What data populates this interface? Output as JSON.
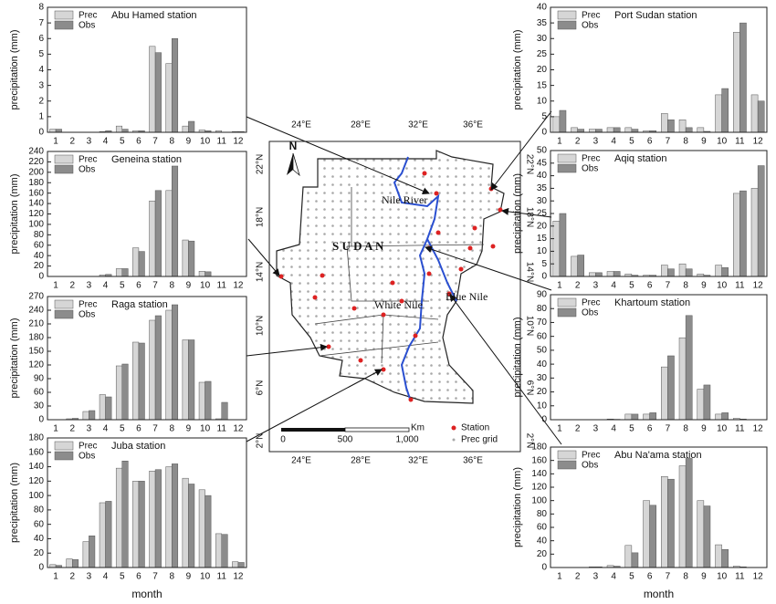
{
  "chart_data": [
    {
      "type": "bar",
      "title": "Abu Hamed station",
      "ylabel": "precipitation (mm)",
      "legend": "upper left",
      "categories": [
        "1",
        "2",
        "3",
        "4",
        "5",
        "6",
        "7",
        "8",
        "9",
        "10",
        "11",
        "12"
      ],
      "series": [
        {
          "name": "Prec",
          "color": "#d6d6d6",
          "values": [
            0.2,
            0,
            0,
            0.05,
            0.4,
            0.1,
            5.5,
            4.4,
            0.4,
            0.15,
            0.1,
            0.05
          ]
        },
        {
          "name": "Obs",
          "color": "#8c8c8c",
          "values": [
            0.2,
            0,
            0,
            0.1,
            0.2,
            0.1,
            5.1,
            6.0,
            0.7,
            0.1,
            0,
            0.05
          ]
        }
      ],
      "ylim": [
        0,
        8
      ],
      "yticks": [
        0,
        1,
        2,
        3,
        4,
        5,
        6,
        7,
        8
      ]
    },
    {
      "type": "bar",
      "title": "Geneina station",
      "ylabel": "precipitation (mm)",
      "legend": "upper left",
      "categories": [
        "1",
        "2",
        "3",
        "4",
        "5",
        "6",
        "7",
        "8",
        "9",
        "10",
        "11",
        "12"
      ],
      "series": [
        {
          "name": "Prec",
          "color": "#d6d6d6",
          "values": [
            0,
            0,
            0,
            3,
            15,
            55,
            145,
            165,
            70,
            10,
            0,
            0
          ]
        },
        {
          "name": "Obs",
          "color": "#8c8c8c",
          "values": [
            0,
            0,
            0,
            4,
            15,
            48,
            165,
            212,
            68,
            9,
            0,
            0
          ]
        }
      ],
      "ylim": [
        0,
        240
      ],
      "yticks": [
        0,
        20,
        40,
        60,
        80,
        100,
        120,
        140,
        160,
        180,
        200,
        220,
        240
      ]
    },
    {
      "type": "bar",
      "title": "Raga station",
      "ylabel": "precipitation (mm)",
      "legend": "upper left",
      "categories": [
        "1",
        "2",
        "3",
        "4",
        "5",
        "6",
        "7",
        "8",
        "9",
        "10",
        "11",
        "12"
      ],
      "series": [
        {
          "name": "Prec",
          "color": "#d6d6d6",
          "values": [
            0,
            2,
            18,
            55,
            118,
            170,
            218,
            240,
            175,
            82,
            2,
            0
          ]
        },
        {
          "name": "Obs",
          "color": "#8c8c8c",
          "values": [
            0,
            3,
            20,
            50,
            122,
            168,
            228,
            252,
            175,
            84,
            38,
            0
          ]
        }
      ],
      "ylim": [
        0,
        270
      ],
      "yticks": [
        0,
        30,
        60,
        90,
        120,
        150,
        180,
        210,
        240,
        270
      ]
    },
    {
      "type": "bar",
      "title": "Juba station",
      "ylabel": "precipitation (mm)",
      "xlabel": "month",
      "legend": "upper left",
      "categories": [
        "1",
        "2",
        "3",
        "4",
        "5",
        "6",
        "7",
        "8",
        "9",
        "10",
        "11",
        "12"
      ],
      "series": [
        {
          "name": "Prec",
          "color": "#d6d6d6",
          "values": [
            4,
            12,
            36,
            90,
            138,
            120,
            134,
            140,
            124,
            108,
            47,
            8
          ]
        },
        {
          "name": "Obs",
          "color": "#8c8c8c",
          "values": [
            3,
            11,
            44,
            92,
            148,
            120,
            136,
            144,
            116,
            100,
            46,
            7
          ]
        }
      ],
      "ylim": [
        0,
        180
      ],
      "yticks": [
        0,
        20,
        40,
        60,
        80,
        100,
        120,
        140,
        160,
        180
      ]
    },
    {
      "type": "bar",
      "title": "Port Sudan station",
      "ylabel": "precipitation (mm)",
      "legend": "upper left",
      "categories": [
        "1",
        "2",
        "3",
        "4",
        "5",
        "6",
        "7",
        "8",
        "9",
        "10",
        "11",
        "12"
      ],
      "series": [
        {
          "name": "Prec",
          "color": "#d6d6d6",
          "values": [
            5,
            1.5,
            1,
            1.5,
            1.5,
            0.5,
            6,
            4,
            1.5,
            12,
            32,
            12
          ]
        },
        {
          "name": "Obs",
          "color": "#8c8c8c",
          "values": [
            7,
            1,
            1,
            1.5,
            1,
            0.5,
            4,
            1.5,
            0.3,
            14,
            35,
            10
          ]
        }
      ],
      "ylim": [
        0,
        40
      ],
      "yticks": [
        0,
        5,
        10,
        15,
        20,
        25,
        30,
        35,
        40
      ]
    },
    {
      "type": "bar",
      "title": "Aqiq station",
      "ylabel": "precipitation (mm)",
      "legend": "upper left",
      "categories": [
        "1",
        "2",
        "3",
        "4",
        "5",
        "6",
        "7",
        "8",
        "9",
        "10",
        "11",
        "12"
      ],
      "series": [
        {
          "name": "Prec",
          "color": "#d6d6d6",
          "values": [
            22,
            8,
            1.5,
            2,
            1,
            0.5,
            4.5,
            5,
            1,
            4.5,
            33,
            35
          ]
        },
        {
          "name": "Obs",
          "color": "#8c8c8c",
          "values": [
            25,
            8.5,
            1.5,
            2,
            0.5,
            0.5,
            3,
            3,
            0.5,
            3.5,
            34,
            44
          ]
        }
      ],
      "ylim": [
        0,
        50
      ],
      "yticks": [
        0,
        5,
        10,
        15,
        20,
        25,
        30,
        35,
        40,
        45,
        50
      ]
    },
    {
      "type": "bar",
      "title": "Khartoum station",
      "ylabel": "precipitation (mm)",
      "legend": "upper left",
      "categories": [
        "1",
        "2",
        "3",
        "4",
        "5",
        "6",
        "7",
        "8",
        "9",
        "10",
        "11",
        "12"
      ],
      "series": [
        {
          "name": "Prec",
          "color": "#d6d6d6",
          "values": [
            0,
            0,
            0,
            0.5,
            4,
            4,
            38,
            59,
            22,
            4,
            1,
            0
          ]
        },
        {
          "name": "Obs",
          "color": "#8c8c8c",
          "values": [
            0,
            0,
            0,
            0.3,
            4,
            5,
            46,
            75,
            25,
            5,
            0.5,
            0
          ]
        }
      ],
      "ylim": [
        0,
        90
      ],
      "yticks": [
        0,
        10,
        20,
        30,
        40,
        50,
        60,
        70,
        80,
        90
      ]
    },
    {
      "type": "bar",
      "title": "Abu Na'ama station",
      "ylabel": "precipitation (mm)",
      "xlabel": "month",
      "legend": "upper left",
      "categories": [
        "1",
        "2",
        "3",
        "4",
        "5",
        "6",
        "7",
        "8",
        "9",
        "10",
        "11",
        "12"
      ],
      "series": [
        {
          "name": "Prec",
          "color": "#d6d6d6",
          "values": [
            0,
            0,
            1,
            3,
            33,
            100,
            136,
            152,
            100,
            34,
            2,
            0
          ]
        },
        {
          "name": "Obs",
          "color": "#8c8c8c",
          "values": [
            0,
            0,
            1,
            2,
            22,
            93,
            132,
            163,
            92,
            27,
            1,
            0
          ]
        }
      ],
      "ylim": [
        0,
        180
      ],
      "yticks": [
        0,
        20,
        40,
        60,
        80,
        100,
        120,
        140,
        160,
        180
      ]
    }
  ],
  "map": {
    "lon_labels": [
      "24°E",
      "28°E",
      "32°E",
      "36°E"
    ],
    "lat_labels": [
      "22°N",
      "18°N",
      "14°N",
      "10°N",
      "6°N",
      "2°N"
    ],
    "north": "N",
    "country": "S U D A N",
    "nile": "Nile River",
    "white_nile": "White Nile",
    "blue_nile": "Blue Nile",
    "scale_labels": [
      "0",
      "500",
      "1,000"
    ],
    "scale_unit": "Km",
    "legend": [
      "Station",
      "Prec grid"
    ]
  }
}
